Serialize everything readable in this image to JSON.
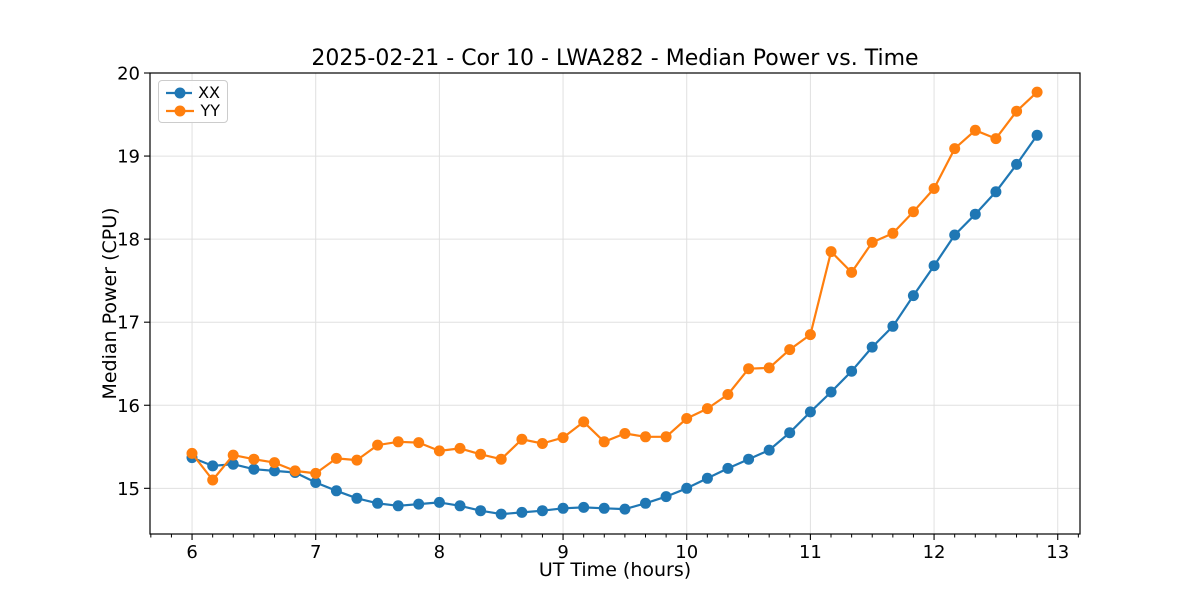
{
  "chart_data": {
    "type": "line",
    "title": "2025-02-21 - Cor 10 - LWA282 - Median Power vs. Time",
    "xlabel": "UT Time (hours)",
    "ylabel": "Median Power (CPU)",
    "xlim": [
      5.66,
      13.18
    ],
    "ylim": [
      14.45,
      20.0
    ],
    "xticks": [
      6,
      7,
      8,
      9,
      10,
      11,
      12,
      13
    ],
    "yticks": [
      15,
      16,
      17,
      18,
      19,
      20
    ],
    "x_minor_step": 0.1667,
    "grid": true,
    "grid_color": "#e0e0e0",
    "legend_position": "upper-left",
    "x": [
      6.0,
      6.167,
      6.333,
      6.5,
      6.667,
      6.833,
      7.0,
      7.167,
      7.333,
      7.5,
      7.667,
      7.833,
      8.0,
      8.167,
      8.333,
      8.5,
      8.667,
      8.833,
      9.0,
      9.167,
      9.333,
      9.5,
      9.667,
      9.833,
      10.0,
      10.167,
      10.333,
      10.5,
      10.667,
      10.833,
      11.0,
      11.167,
      11.333,
      11.5,
      11.667,
      11.833,
      12.0,
      12.167,
      12.333,
      12.5,
      12.667,
      12.833
    ],
    "series": [
      {
        "name": "XX",
        "color": "#1f77b4",
        "values": [
          15.37,
          15.27,
          15.29,
          15.23,
          15.21,
          15.19,
          15.07,
          14.97,
          14.88,
          14.82,
          14.79,
          14.81,
          14.83,
          14.79,
          14.73,
          14.69,
          14.71,
          14.73,
          14.76,
          14.77,
          14.76,
          14.75,
          14.82,
          14.9,
          15.0,
          15.12,
          15.24,
          15.35,
          15.46,
          15.67,
          15.92,
          16.16,
          16.41,
          16.7,
          16.95,
          17.32,
          17.68,
          18.05,
          18.3,
          18.57,
          18.9,
          19.25
        ]
      },
      {
        "name": "YY",
        "color": "#ff7f0e",
        "values": [
          15.42,
          15.1,
          15.4,
          15.35,
          15.31,
          15.21,
          15.18,
          15.36,
          15.34,
          15.52,
          15.56,
          15.55,
          15.45,
          15.48,
          15.41,
          15.35,
          15.59,
          15.54,
          15.61,
          15.8,
          15.56,
          15.66,
          15.62,
          15.62,
          15.84,
          15.96,
          16.13,
          16.44,
          16.45,
          16.67,
          16.85,
          17.85,
          17.6,
          17.96,
          18.07,
          18.33,
          18.61,
          19.09,
          19.31,
          19.21,
          19.54,
          19.77
        ]
      }
    ]
  }
}
